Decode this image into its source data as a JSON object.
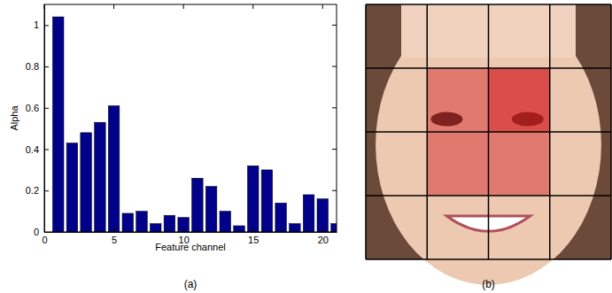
{
  "chart_data": {
    "type": "bar",
    "caption": "(a)",
    "x_label": "Feature channel",
    "y_label": "Alpha",
    "x": [
      1,
      2,
      3,
      4,
      5,
      6,
      7,
      8,
      9,
      10,
      11,
      12,
      13,
      14,
      15,
      16,
      17,
      18,
      19,
      20,
      21
    ],
    "values": [
      1.04,
      0.43,
      0.48,
      0.53,
      0.61,
      0.09,
      0.1,
      0.04,
      0.08,
      0.07,
      0.26,
      0.22,
      0.1,
      0.03,
      0.32,
      0.3,
      0.14,
      0.04,
      0.18,
      0.16,
      0.04
    ],
    "color": "#00008b",
    "xlim": [
      0,
      21
    ],
    "xticks": [
      0,
      5,
      10,
      15,
      20
    ],
    "ylim": [
      0,
      1.1
    ],
    "yticks": [
      0,
      0.2,
      0.4,
      0.6,
      0.8,
      1
    ]
  },
  "image_panel": {
    "caption": "(b)"
  }
}
